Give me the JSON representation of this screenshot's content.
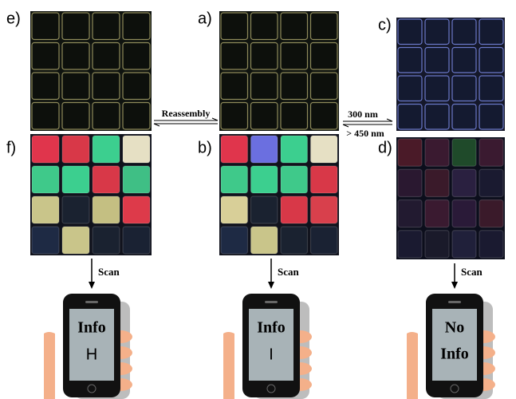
{
  "panels": [
    {
      "label": "e)"
    },
    {
      "label": "a)"
    },
    {
      "label": "c)"
    },
    {
      "label": "f)"
    },
    {
      "label": "b)"
    },
    {
      "label": "d)"
    }
  ],
  "arrows": {
    "reassembly": "Reassembly",
    "forward": "300 nm",
    "backward": "> 450 nm"
  },
  "phones": [
    {
      "scan": "Scan",
      "lines": [
        "Info",
        "H"
      ]
    },
    {
      "scan": "Scan",
      "lines": [
        "Info",
        "I"
      ]
    },
    {
      "scan": "Scan",
      "lines": [
        "No",
        "Info"
      ]
    }
  ]
}
